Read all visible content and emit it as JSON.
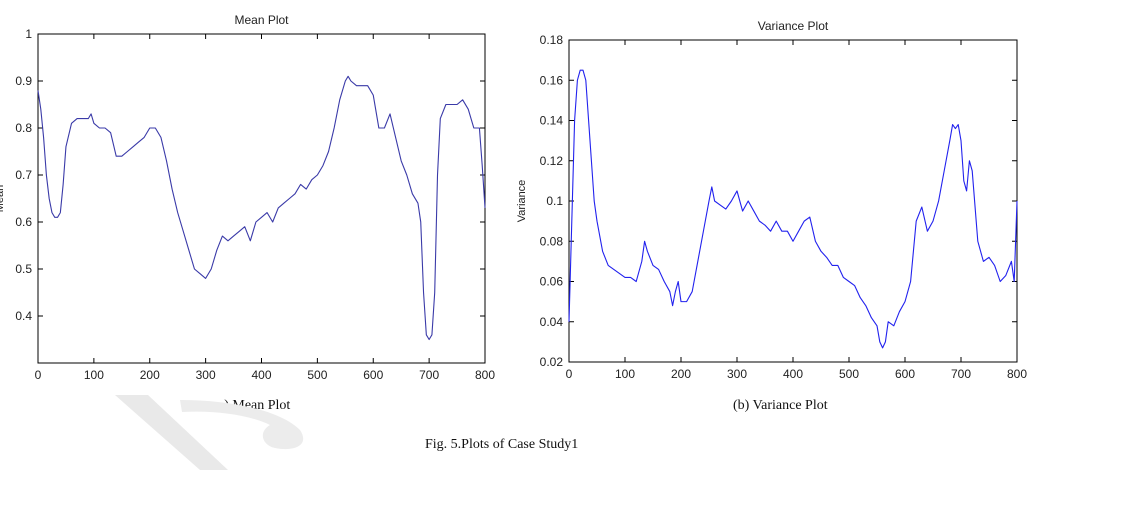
{
  "figure": {
    "caption_a": "a) Mean Plot",
    "caption_b": "(b) Variance Plot",
    "caption_fig": "Fig. 5.Plots of Case Study1"
  },
  "chart_data": [
    {
      "type": "line",
      "title": "Mean Plot",
      "xlabel": "",
      "ylabel": "Mean",
      "xlim": [
        0,
        800
      ],
      "ylim": [
        0.3,
        1.0
      ],
      "xticks": [
        0,
        100,
        200,
        300,
        400,
        500,
        600,
        700,
        800
      ],
      "yticks": [
        0.4,
        0.5,
        0.6,
        0.7,
        0.8,
        0.9,
        1
      ],
      "tick_labels_x": [
        "0",
        "100",
        "200",
        "300",
        "400",
        "500",
        "600",
        "700",
        "800"
      ],
      "tick_labels_y": [
        "0.4",
        "0.5",
        "0.6",
        "0.7",
        "0.8",
        "0.9",
        "1"
      ],
      "grid": false,
      "line_color": "#3a3aa8",
      "series": [
        {
          "x": [
            0,
            5,
            10,
            15,
            20,
            25,
            30,
            35,
            40,
            45,
            50,
            60,
            70,
            80,
            90,
            95,
            100,
            110,
            120,
            130,
            140,
            150,
            160,
            170,
            180,
            190,
            200,
            210,
            220,
            230,
            240,
            250,
            260,
            270,
            280,
            290,
            300,
            310,
            320,
            330,
            340,
            350,
            360,
            370,
            380,
            390,
            400,
            410,
            420,
            430,
            440,
            450,
            460,
            470,
            480,
            490,
            500,
            510,
            520,
            530,
            540,
            550,
            555,
            560,
            570,
            580,
            590,
            600,
            610,
            620,
            630,
            640,
            650,
            660,
            670,
            680,
            685,
            690,
            695,
            700,
            705,
            710,
            715,
            720,
            730,
            740,
            750,
            760,
            770,
            780,
            790,
            795,
            800
          ],
          "y": [
            0.88,
            0.84,
            0.78,
            0.7,
            0.65,
            0.62,
            0.61,
            0.61,
            0.62,
            0.68,
            0.76,
            0.81,
            0.82,
            0.82,
            0.82,
            0.83,
            0.81,
            0.8,
            0.8,
            0.79,
            0.74,
            0.74,
            0.75,
            0.76,
            0.77,
            0.78,
            0.8,
            0.8,
            0.78,
            0.73,
            0.67,
            0.62,
            0.58,
            0.54,
            0.5,
            0.49,
            0.48,
            0.5,
            0.54,
            0.57,
            0.56,
            0.57,
            0.58,
            0.59,
            0.56,
            0.6,
            0.61,
            0.62,
            0.6,
            0.63,
            0.64,
            0.65,
            0.66,
            0.68,
            0.67,
            0.69,
            0.7,
            0.72,
            0.75,
            0.8,
            0.86,
            0.9,
            0.91,
            0.9,
            0.89,
            0.89,
            0.89,
            0.87,
            0.8,
            0.8,
            0.83,
            0.78,
            0.73,
            0.7,
            0.66,
            0.64,
            0.6,
            0.45,
            0.36,
            0.35,
            0.36,
            0.45,
            0.7,
            0.82,
            0.85,
            0.85,
            0.85,
            0.86,
            0.84,
            0.8,
            0.8,
            0.72,
            0.63
          ]
        }
      ]
    },
    {
      "type": "line",
      "title": "Variance Plot",
      "xlabel": "",
      "ylabel": "Variance",
      "xlim": [
        0,
        800
      ],
      "ylim": [
        0.02,
        0.18
      ],
      "xticks": [
        0,
        100,
        200,
        300,
        400,
        500,
        600,
        700,
        800
      ],
      "yticks": [
        0.02,
        0.04,
        0.06,
        0.08,
        0.1,
        0.12,
        0.14,
        0.16,
        0.18
      ],
      "tick_labels_x": [
        "0",
        "100",
        "200",
        "300",
        "400",
        "500",
        "600",
        "700",
        "800"
      ],
      "tick_labels_y": [
        "0.02",
        "0.04",
        "0.06",
        "0.08",
        "0.1",
        "0.12",
        "0.14",
        "0.16",
        "0.18"
      ],
      "grid": false,
      "line_color": "#2222ee",
      "series": [
        {
          "x": [
            0,
            3,
            6,
            10,
            15,
            20,
            25,
            30,
            35,
            40,
            45,
            50,
            60,
            70,
            80,
            90,
            100,
            110,
            120,
            130,
            135,
            140,
            150,
            160,
            170,
            180,
            185,
            190,
            195,
            200,
            210,
            220,
            230,
            240,
            250,
            255,
            260,
            270,
            280,
            290,
            300,
            310,
            320,
            330,
            340,
            350,
            360,
            370,
            380,
            390,
            400,
            410,
            420,
            430,
            440,
            450,
            460,
            470,
            480,
            490,
            500,
            510,
            520,
            530,
            540,
            550,
            555,
            560,
            565,
            570,
            580,
            590,
            600,
            610,
            615,
            620,
            630,
            640,
            650,
            660,
            670,
            680,
            685,
            690,
            695,
            700,
            705,
            710,
            715,
            720,
            730,
            740,
            750,
            760,
            770,
            780,
            790,
            795,
            800
          ],
          "y": [
            0.04,
            0.07,
            0.1,
            0.14,
            0.16,
            0.165,
            0.165,
            0.16,
            0.14,
            0.12,
            0.1,
            0.09,
            0.075,
            0.068,
            0.066,
            0.064,
            0.062,
            0.062,
            0.06,
            0.07,
            0.08,
            0.075,
            0.068,
            0.066,
            0.06,
            0.055,
            0.048,
            0.055,
            0.06,
            0.05,
            0.05,
            0.055,
            0.07,
            0.085,
            0.1,
            0.107,
            0.1,
            0.098,
            0.096,
            0.1,
            0.105,
            0.095,
            0.1,
            0.095,
            0.09,
            0.088,
            0.085,
            0.09,
            0.085,
            0.085,
            0.08,
            0.085,
            0.09,
            0.092,
            0.08,
            0.075,
            0.072,
            0.068,
            0.068,
            0.062,
            0.06,
            0.058,
            0.052,
            0.048,
            0.042,
            0.038,
            0.03,
            0.027,
            0.03,
            0.04,
            0.038,
            0.045,
            0.05,
            0.06,
            0.075,
            0.09,
            0.097,
            0.085,
            0.09,
            0.1,
            0.115,
            0.13,
            0.138,
            0.136,
            0.138,
            0.13,
            0.11,
            0.105,
            0.12,
            0.115,
            0.08,
            0.07,
            0.072,
            0.068,
            0.06,
            0.063,
            0.07,
            0.06,
            0.1
          ]
        }
      ]
    }
  ]
}
